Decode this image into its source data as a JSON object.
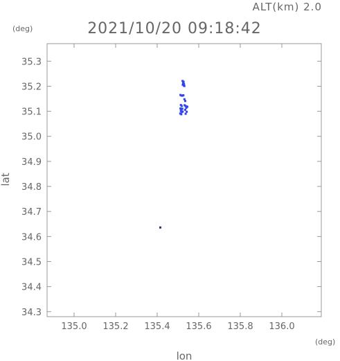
{
  "header": {
    "altitude_label": "ALT(km) 2.0",
    "timestamp": "2021/10/20 09:18:42"
  },
  "chart_data": {
    "type": "scatter",
    "xlabel": "lon",
    "ylabel": "lat",
    "x_unit": "(deg)",
    "y_unit": "(deg)",
    "xlim": [
      134.87,
      136.19
    ],
    "ylim": [
      34.28,
      35.37
    ],
    "x_ticks": [
      135.0,
      135.2,
      135.4,
      135.6,
      135.8,
      136.0
    ],
    "x_tick_labels": [
      "135.0",
      "135.2",
      "135.4",
      "135.6",
      "135.8",
      "136.0"
    ],
    "y_ticks": [
      34.3,
      34.4,
      34.5,
      34.6,
      34.7,
      34.8,
      34.9,
      35.0,
      35.1,
      35.2,
      35.3
    ],
    "y_tick_labels": [
      "34.3",
      "34.4",
      "34.5",
      "34.6",
      "34.7",
      "34.8",
      "34.9",
      "35.0",
      "35.1",
      "35.2",
      "35.3"
    ],
    "grid": false,
    "series": [
      {
        "color": "#3344ee",
        "points": [
          [
            135.522,
            35.221
          ],
          [
            135.527,
            35.218
          ],
          [
            135.525,
            35.213
          ],
          [
            135.529,
            35.209
          ],
          [
            135.523,
            35.206
          ],
          [
            135.528,
            35.203
          ],
          [
            135.531,
            35.201
          ],
          [
            135.512,
            35.165
          ],
          [
            135.517,
            35.163
          ],
          [
            135.521,
            35.162
          ],
          [
            135.526,
            35.164
          ],
          [
            135.531,
            35.148
          ],
          [
            135.535,
            35.141
          ],
          [
            135.514,
            35.125
          ],
          [
            135.518,
            35.121
          ],
          [
            135.532,
            35.124
          ],
          [
            135.537,
            35.121
          ],
          [
            135.541,
            35.119
          ],
          [
            135.545,
            35.118
          ],
          [
            135.54,
            35.114
          ],
          [
            135.512,
            35.111
          ],
          [
            135.516,
            35.108
          ],
          [
            135.521,
            35.11
          ],
          [
            135.535,
            35.106
          ],
          [
            135.514,
            35.101
          ],
          [
            135.519,
            35.097
          ],
          [
            135.523,
            35.099
          ],
          [
            135.542,
            35.098
          ],
          [
            135.511,
            35.091
          ],
          [
            135.516,
            35.088
          ],
          [
            135.537,
            35.09
          ]
        ]
      },
      {
        "color": "#333366",
        "points": [
          [
            135.415,
            34.636
          ]
        ]
      }
    ]
  }
}
